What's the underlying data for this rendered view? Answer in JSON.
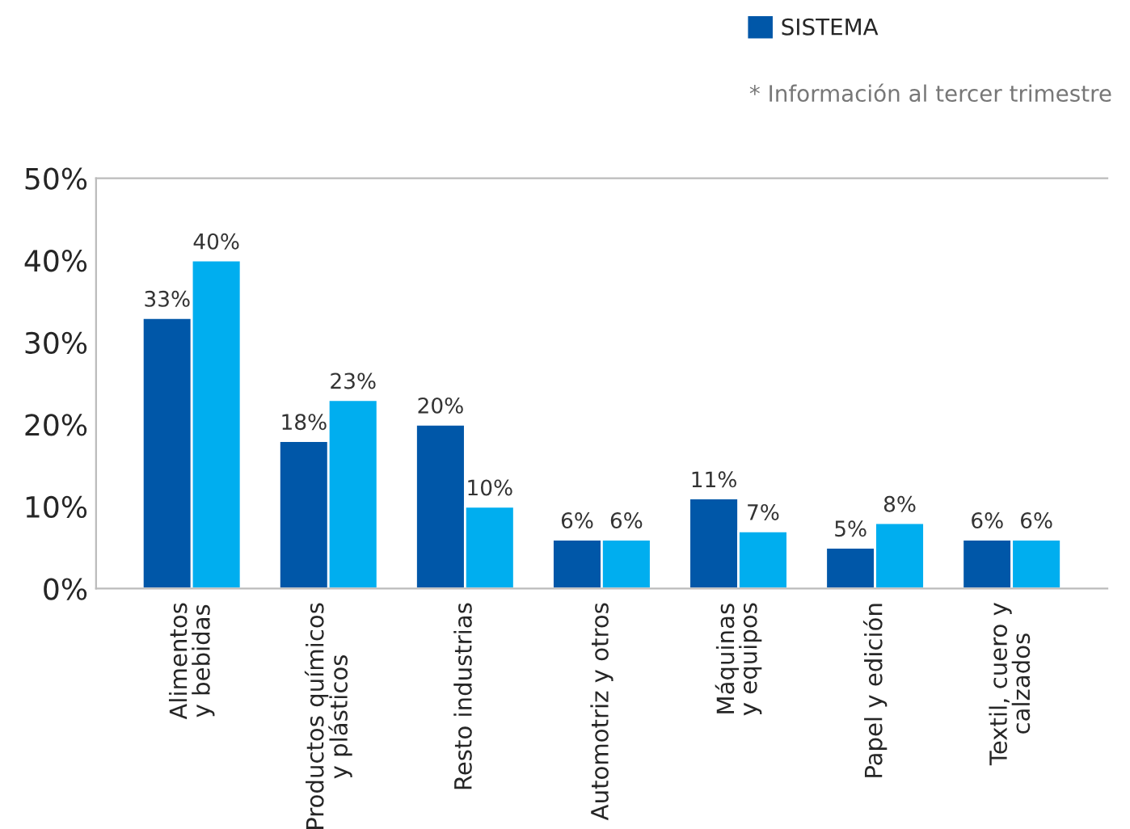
{
  "chart_data": {
    "type": "bar",
    "categories": [
      "Alimentos\ny bebidas",
      "Productos químicos\ny plásticos",
      "Resto industrias",
      "Automotriz y otros",
      "Máquinas\ny equipos",
      "Papel y edición",
      "Textil, cuero y\ncalzados"
    ],
    "series": [
      {
        "name": "SISTEMA",
        "color": "#0057a8",
        "values": [
          33,
          18,
          20,
          6,
          11,
          5,
          6
        ],
        "value_labels": [
          "33%",
          "18%",
          "20%",
          "6%",
          "11%",
          "5%",
          "6%"
        ]
      },
      {
        "color": "#00aeef",
        "values": [
          40,
          23,
          10,
          6,
          7,
          8,
          6
        ],
        "value_labels": [
          "40%",
          "23%",
          "10%",
          "6%",
          "7%",
          "8%",
          "6%"
        ]
      }
    ],
    "ylim": [
      0,
      50
    ],
    "yticks": [
      {
        "value": 0,
        "label": "0%"
      },
      {
        "value": 10,
        "label": "10%"
      },
      {
        "value": 20,
        "label": "20%"
      },
      {
        "value": 30,
        "label": "30%"
      },
      {
        "value": 40,
        "label": "40%"
      },
      {
        "value": 50,
        "label": "50%"
      }
    ],
    "grid": false,
    "legend": "top right",
    "annotations": [
      "* Información al tercer trimestre"
    ]
  }
}
